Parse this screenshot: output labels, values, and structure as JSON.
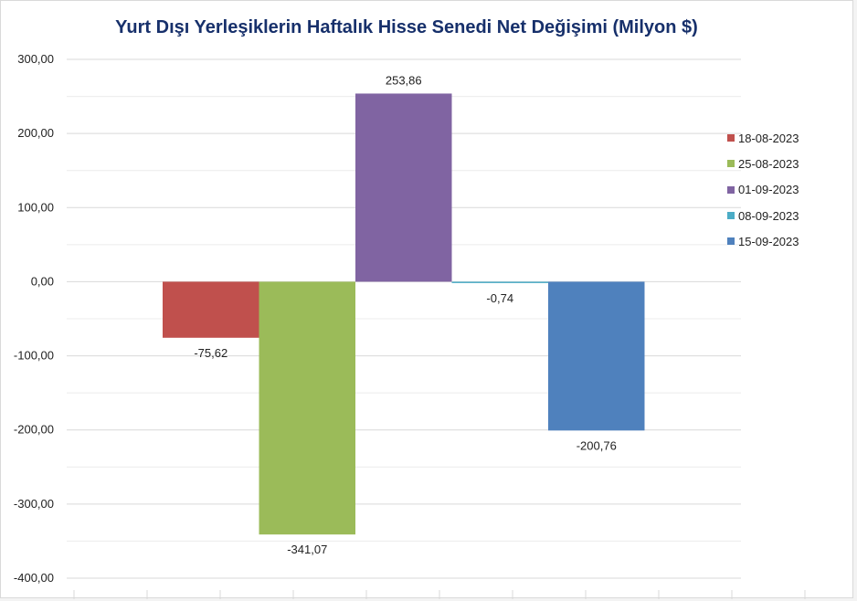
{
  "chart_data": {
    "type": "bar",
    "title": "Yurt Dışı Yerleşiklerin Haftalık Hisse Senedi Net Değişimi (Milyon $)",
    "xlabel": "",
    "ylabel": "",
    "ylim": [
      -400,
      300
    ],
    "yticks": [
      "300,00",
      "200,00",
      "100,00",
      "0,00",
      "-100,00",
      "-200,00",
      "-300,00",
      "-400,00"
    ],
    "ytick_values": [
      300,
      200,
      100,
      0,
      -100,
      -200,
      -300,
      -400
    ],
    "grid": true,
    "legend_position": "right",
    "series": [
      {
        "name": "18-08-2023",
        "value": -75.62,
        "label": "-75,62",
        "color": "#c0504d"
      },
      {
        "name": "25-08-2023",
        "value": -341.07,
        "label": "-341,07",
        "color": "#9bbb59"
      },
      {
        "name": "01-09-2023",
        "value": 253.86,
        "label": "253,86",
        "color": "#8064a2"
      },
      {
        "name": "08-09-2023",
        "value": -0.74,
        "label": "-0,74",
        "color": "#4bacc6"
      },
      {
        "name": "15-09-2023",
        "value": -200.76,
        "label": "-200,76",
        "color": "#4f81bd"
      }
    ]
  }
}
